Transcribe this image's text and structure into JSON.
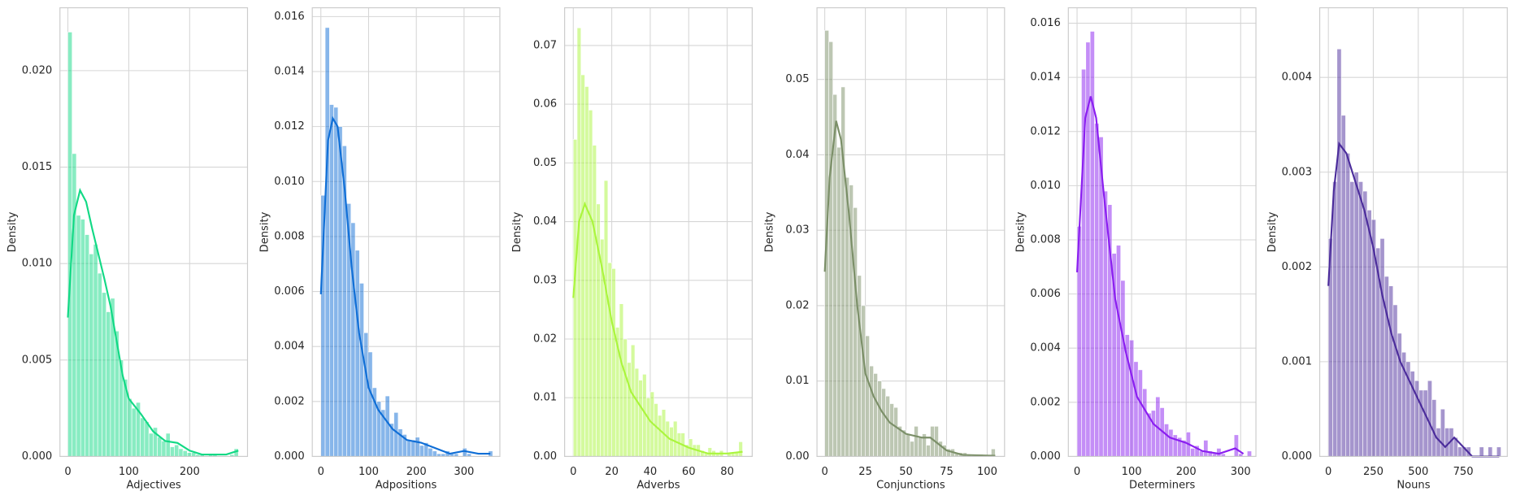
{
  "chart_data": [
    {
      "type": "histogram",
      "xlabel": "Adjectives",
      "ylabel": "Density",
      "color": "#12d985",
      "grid": true,
      "bins": [
        0,
        7,
        14,
        21,
        28,
        35,
        42,
        49,
        56,
        63,
        70,
        77,
        84,
        91,
        98,
        105,
        112,
        119,
        126,
        133,
        140,
        147,
        154,
        161,
        168,
        175,
        182,
        189,
        196,
        203,
        210,
        217,
        224,
        231,
        238,
        245,
        252,
        259,
        266,
        273,
        280
      ],
      "values": [
        0.022,
        0.0157,
        0.0125,
        0.0123,
        0.0115,
        0.0105,
        0.011,
        0.0095,
        0.0085,
        0.0075,
        0.0082,
        0.0065,
        0.005,
        0.004,
        0.003,
        0.0025,
        0.0028,
        0.002,
        0.0018,
        0.0012,
        0.0015,
        0.001,
        0.0008,
        0.0012,
        0.0005,
        0.0006,
        0.0004,
        0.0003,
        0.0002,
        0.0002,
        0.0001,
        0.0001,
        0,
        0.0001,
        0.0001,
        0,
        0,
        0,
        0.0001,
        0.0004
      ],
      "kde": {
        "x": [
          0,
          10,
          20,
          30,
          40,
          50,
          60,
          70,
          80,
          90,
          100,
          120,
          140,
          160,
          180,
          200,
          220,
          240,
          260,
          280
        ],
        "values": [
          0.0072,
          0.0125,
          0.0138,
          0.0132,
          0.0118,
          0.0105,
          0.0092,
          0.0078,
          0.006,
          0.0042,
          0.003,
          0.0022,
          0.0013,
          0.0008,
          0.0007,
          0.0003,
          0.0001,
          0.0001,
          0.0001,
          0.0003
        ]
      },
      "xlim": [
        -13,
        295
      ],
      "ylim": [
        0,
        0.02326
      ],
      "xticks": [
        0,
        100,
        200
      ],
      "yticks": [
        {
          "value": 0,
          "label": "0.000"
        },
        0.005,
        {
          "value": 0.01,
          "label": "0.010"
        },
        0.015,
        {
          "value": 0.02,
          "label": "0.020"
        }
      ]
    },
    {
      "type": "histogram",
      "xlabel": "Adpositions",
      "ylabel": "Density",
      "color": "#0f6ed6",
      "grid": true,
      "bins": [
        0,
        9,
        18,
        27,
        36,
        45,
        54,
        63,
        72,
        81,
        90,
        99,
        108,
        117,
        126,
        135,
        144,
        153,
        162,
        171,
        180,
        189,
        198,
        207,
        216,
        225,
        234,
        243,
        252,
        261,
        270,
        279,
        288,
        297,
        306,
        315,
        324,
        333,
        342,
        351,
        360
      ],
      "values": [
        0.0095,
        0.0156,
        0.0128,
        0.0127,
        0.012,
        0.0113,
        0.0092,
        0.0085,
        0.0075,
        0.0063,
        0.0045,
        0.0038,
        0.0025,
        0.002,
        0.0017,
        0.0022,
        0.0012,
        0.0016,
        0.001,
        0.0008,
        0.0006,
        0.0006,
        0.0007,
        0.0004,
        0.0005,
        0.0003,
        0.0002,
        0.0001,
        0.0001,
        0.0002,
        0.0001,
        0.0001,
        0,
        0.0003,
        0.0001,
        0,
        0,
        0,
        0,
        0.0002
      ],
      "kde": {
        "x": [
          0,
          15,
          25,
          35,
          50,
          65,
          80,
          100,
          120,
          150,
          180,
          210,
          240,
          270,
          300,
          330,
          355
        ],
        "values": [
          0.0059,
          0.0115,
          0.0123,
          0.012,
          0.0097,
          0.0068,
          0.0045,
          0.0025,
          0.0017,
          0.001,
          0.0006,
          0.0005,
          0.0003,
          0.0001,
          0.0002,
          0.0001,
          0.0001
        ]
      },
      "xlim": [
        -18,
        375
      ],
      "ylim": [
        0,
        0.01632
      ],
      "xticks": [
        0,
        100,
        200,
        300
      ],
      "yticks": [
        {
          "value": 0,
          "label": "0.000"
        },
        0.002,
        0.004,
        0.006,
        0.008,
        {
          "value": 0.01,
          "label": "0.010"
        },
        0.012,
        0.014,
        0.016
      ]
    },
    {
      "type": "histogram",
      "xlabel": "Adverbs",
      "ylabel": "Density",
      "color": "#aaf53c",
      "grid": true,
      "bins": [
        0,
        2,
        4,
        6,
        8,
        10,
        12,
        14,
        16,
        18,
        20,
        22,
        24,
        26,
        28,
        30,
        32,
        34,
        36,
        38,
        40,
        42,
        44,
        46,
        48,
        50,
        52,
        54,
        56,
        58,
        60,
        62,
        64,
        66,
        68,
        70,
        72,
        74,
        76,
        78,
        80,
        82,
        84,
        86,
        88
      ],
      "values": [
        0.054,
        0.073,
        0.065,
        0.063,
        0.059,
        0.053,
        0.043,
        0.037,
        0.047,
        0.033,
        0.032,
        0.022,
        0.026,
        0.02,
        0.016,
        0.019,
        0.015,
        0.013,
        0.014,
        0.01,
        0.011,
        0.009,
        0.007,
        0.008,
        0.006,
        0.005,
        0.006,
        0.004,
        0.004,
        0.002,
        0.003,
        0.002,
        0.002,
        0.001,
        0.0005,
        0.0015,
        0.001,
        0.0005,
        0.001,
        0,
        0.0005,
        0.0005,
        0.0008,
        0.0025
      ],
      "kde": {
        "x": [
          0,
          3,
          6,
          10,
          15,
          20,
          25,
          30,
          40,
          50,
          60,
          70,
          80,
          88
        ],
        "values": [
          0.027,
          0.04,
          0.043,
          0.04,
          0.032,
          0.023,
          0.016,
          0.011,
          0.006,
          0.003,
          0.0015,
          0.0005,
          0.0005,
          0.0008
        ]
      },
      "xlim": [
        -4.5,
        93
      ],
      "ylim": [
        0,
        0.07642
      ],
      "xticks": [
        0,
        20,
        40,
        60,
        80
      ],
      "yticks": [
        {
          "value": 0,
          "label": "0.00"
        },
        0.01,
        0.02,
        0.03,
        0.04,
        0.05,
        0.06,
        0.07
      ]
    },
    {
      "type": "histogram",
      "xlabel": "Conjunctions",
      "ylabel": "Density",
      "color": "#7b8f68",
      "grid": true,
      "bins": [
        0,
        2.5,
        5,
        7.5,
        10,
        12.5,
        15,
        17.5,
        20,
        22.5,
        25,
        27.5,
        30,
        32.5,
        35,
        37.5,
        40,
        42.5,
        45,
        47.5,
        50,
        52.5,
        55,
        57.5,
        60,
        62.5,
        65,
        67.5,
        70,
        72.5,
        75,
        77.5,
        80,
        82.5,
        85,
        87.5,
        90,
        92.5,
        95,
        97.5,
        100,
        102.5,
        105
      ],
      "values": [
        0.0565,
        0.055,
        0.048,
        0.041,
        0.049,
        0.037,
        0.036,
        0.033,
        0.024,
        0.02,
        0.016,
        0.012,
        0.011,
        0.01,
        0.009,
        0.008,
        0.007,
        0.0065,
        0.004,
        0.0035,
        0.003,
        0.002,
        0.004,
        0.0025,
        0.003,
        0.0015,
        0.004,
        0.004,
        0.002,
        0.0015,
        0.001,
        0.001,
        0.0005,
        0.0005,
        0.0005,
        0.0003,
        0,
        0,
        0.0003,
        0,
        0,
        0.001
      ],
      "kde": {
        "x": [
          0,
          3,
          7,
          10,
          15,
          20,
          25,
          30,
          35,
          40,
          50,
          60,
          65,
          75,
          85,
          105
        ],
        "values": [
          0.0245,
          0.037,
          0.0445,
          0.042,
          0.032,
          0.02,
          0.011,
          0.008,
          0.006,
          0.0045,
          0.003,
          0.0025,
          0.0025,
          0.0008,
          0.0002,
          0.0001
        ]
      },
      "xlim": [
        -4.8,
        110.7
      ],
      "ylim": [
        0,
        0.0595
      ],
      "xticks": [
        0,
        25,
        50,
        75,
        100
      ],
      "yticks": [
        {
          "value": 0,
          "label": "0.00"
        },
        0.01,
        0.02,
        0.03,
        0.04,
        0.05
      ]
    },
    {
      "type": "histogram",
      "xlabel": "Determiners",
      "ylabel": "Density",
      "color": "#8a1ef0",
      "grid": true,
      "bins": [
        0,
        8,
        16,
        24,
        32,
        40,
        48,
        56,
        64,
        72,
        80,
        88,
        96,
        104,
        112,
        120,
        128,
        136,
        144,
        152,
        160,
        168,
        176,
        184,
        192,
        200,
        208,
        216,
        224,
        232,
        240,
        248,
        256,
        264,
        272,
        280,
        288,
        296,
        304,
        312,
        320
      ],
      "values": [
        0.0085,
        0.0143,
        0.0153,
        0.0157,
        0.0123,
        0.0118,
        0.0098,
        0.0093,
        0.0075,
        0.0078,
        0.0065,
        0.0045,
        0.0043,
        0.0035,
        0.0032,
        0.0025,
        0.0016,
        0.0017,
        0.0022,
        0.0018,
        0.0012,
        0.001,
        0.0008,
        0.0007,
        0.0006,
        0.0009,
        0.0003,
        0.0004,
        0.0002,
        0.0006,
        0.0002,
        0.0001,
        0.0003,
        0.0001,
        0,
        0,
        0.0008,
        0.0001,
        0,
        0.0002
      ],
      "kde": {
        "x": [
          0,
          15,
          25,
          35,
          50,
          70,
          90,
          110,
          140,
          170,
          200,
          230,
          260,
          290,
          305
        ],
        "values": [
          0.0068,
          0.0125,
          0.0133,
          0.0125,
          0.0095,
          0.0058,
          0.0038,
          0.0022,
          0.0012,
          0.0007,
          0.0005,
          0.0002,
          0.0001,
          0.0003,
          0.0001
        ]
      },
      "xlim": [
        -16,
        328
      ],
      "ylim": [
        0,
        0.01657
      ],
      "xticks": [
        0,
        100,
        200,
        300
      ],
      "yticks": [
        {
          "value": 0,
          "label": "0.000"
        },
        0.002,
        0.004,
        0.006,
        0.008,
        {
          "value": 0.01,
          "label": "0.010"
        },
        0.012,
        0.014,
        0.016
      ]
    },
    {
      "type": "histogram",
      "xlabel": "Nouns",
      "ylabel": "Density",
      "color": "#4b2c9b",
      "grid": true,
      "bins": [
        0,
        24,
        48,
        72,
        96,
        120,
        144,
        168,
        192,
        216,
        240,
        264,
        288,
        312,
        336,
        360,
        384,
        408,
        432,
        456,
        480,
        504,
        528,
        552,
        576,
        600,
        624,
        648,
        672,
        696,
        720,
        744,
        768,
        792,
        816,
        840,
        864,
        888,
        912,
        936,
        960
      ],
      "values": [
        0.0023,
        0.0029,
        0.0043,
        0.0036,
        0.0032,
        0.0029,
        0.003,
        0.0029,
        0.0028,
        0.0026,
        0.0025,
        0.0022,
        0.0023,
        0.0019,
        0.0018,
        0.0016,
        0.0013,
        0.0011,
        0.001,
        0.0009,
        0.0008,
        0.0007,
        0.0007,
        0.0008,
        0.0006,
        0.0003,
        0.0005,
        0.0003,
        0.0003,
        0.0002,
        0.0001,
        0.0001,
        0.0001,
        0,
        0,
        0.0001,
        0,
        0.0001,
        0,
        0.0001
      ],
      "kde": {
        "x": [
          0,
          30,
          60,
          100,
          150,
          200,
          250,
          300,
          350,
          400,
          450,
          500,
          550,
          600,
          650,
          700,
          750,
          800,
          850,
          900,
          950
        ],
        "values": [
          0.0018,
          0.0028,
          0.0033,
          0.0032,
          0.0029,
          0.0026,
          0.0022,
          0.0017,
          0.0013,
          0.001,
          0.0008,
          0.0006,
          0.0004,
          0.0002,
          0.0001,
          0.0002,
          0.0001,
          0,
          0,
          0,
          0
        ]
      },
      "xlim": [
        -48,
        995
      ],
      "ylim": [
        0,
        0.004735
      ],
      "xticks": [
        0,
        250,
        500,
        750
      ],
      "yticks": [
        {
          "value": 0,
          "label": "0.000"
        },
        0.001,
        0.002,
        0.003,
        0.004
      ]
    }
  ]
}
